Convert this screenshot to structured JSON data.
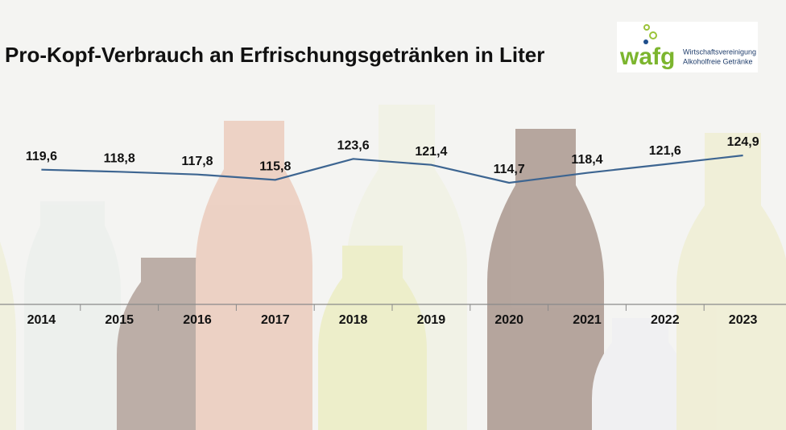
{
  "header": {
    "logo": "wafg",
    "logo_line1": "Wirtschaftsvereinigung",
    "logo_line2": "Alkoholfreie Getränke"
  },
  "chart_data": {
    "type": "line",
    "title": "Pro-Kopf-Verbrauch an Erfrischungsgetränken in Liter",
    "categories": [
      "2014",
      "2015",
      "2016",
      "2017",
      "2018",
      "2019",
      "2020",
      "2021",
      "2022",
      "2023"
    ],
    "values": [
      119.6,
      118.8,
      117.8,
      115.8,
      123.6,
      121.4,
      114.7,
      118.4,
      121.6,
      124.9
    ],
    "value_labels": [
      "119,6",
      "118,8",
      "117,8",
      "115,8",
      "123,6",
      "121,4",
      "114,7",
      "118,4",
      "121,6",
      "124,9"
    ],
    "color": "#3d6591"
  }
}
